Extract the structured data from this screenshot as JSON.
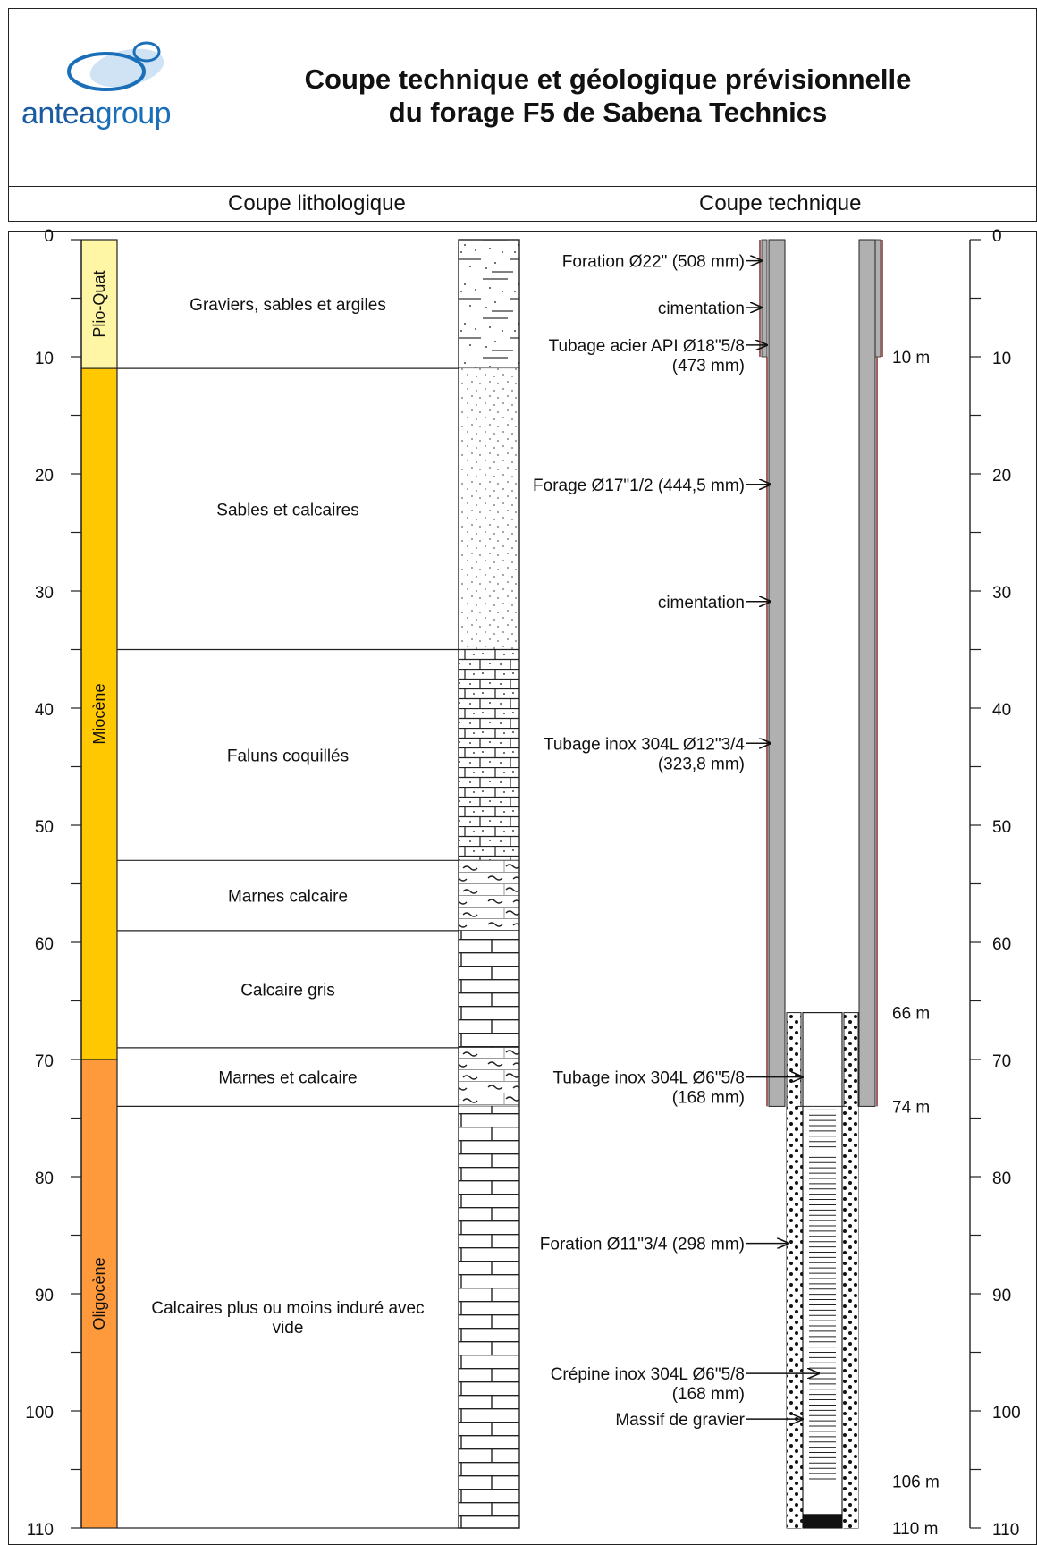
{
  "header": {
    "logo_text_a": "antea",
    "logo_text_b": "group",
    "title_line1": "Coupe technique et géologique prévisionnelle",
    "title_line2": "du forage F5 de Sabena Technics"
  },
  "sections": {
    "litho": "Coupe lithologique",
    "tech": "Coupe technique"
  },
  "depth_axis": {
    "min": 0,
    "max": 110,
    "major_ticks": [
      0,
      10,
      20,
      30,
      40,
      50,
      60,
      70,
      80,
      90,
      100,
      110
    ]
  },
  "stratigraphy": [
    {
      "label": "Plio-Quat",
      "top": 0,
      "bottom": 11,
      "color": "#FEF5A5"
    },
    {
      "label": "Miocène",
      "top": 11,
      "bottom": 70,
      "color": "#FFC800"
    },
    {
      "label": "Oligocène",
      "top": 70,
      "bottom": 110,
      "color": "#FF9A3C"
    }
  ],
  "lithology": [
    {
      "label": "Graviers, sables et argiles",
      "top": 0,
      "bottom": 11,
      "pattern": "gravel-sand-clay"
    },
    {
      "label": "Sables et calcaires",
      "top": 11,
      "bottom": 35,
      "pattern": "sand"
    },
    {
      "label": "Faluns coquillés",
      "top": 35,
      "bottom": 53,
      "pattern": "shelly-limestone"
    },
    {
      "label": "Marnes calcaire",
      "top": 53,
      "bottom": 59,
      "pattern": "marl"
    },
    {
      "label": "Calcaire gris",
      "top": 59,
      "bottom": 69,
      "pattern": "limestone"
    },
    {
      "label": "Marnes et calcaire",
      "top": 69,
      "bottom": 74,
      "pattern": "marl"
    },
    {
      "label": "Calcaires plus ou moins induré avec vide",
      "top": 74,
      "bottom": 110,
      "pattern": "limestone"
    }
  ],
  "annotations": [
    {
      "lines": [
        "Foration Ø22\" (508 mm)"
      ],
      "depth": 1.8
    },
    {
      "lines": [
        "cimentation"
      ],
      "depth": 5.8
    },
    {
      "lines": [
        "Tubage acier API Ø18\"5/8",
        "(473 mm)"
      ],
      "depth": 9
    },
    {
      "lines": [
        "Forage Ø17\"1/2 (444,5 mm)"
      ],
      "depth": 20.9
    },
    {
      "lines": [
        "cimentation"
      ],
      "depth": 30.9
    },
    {
      "lines": [
        "Tubage inox 304L Ø12\"3/4",
        "(323,8 mm)"
      ],
      "depth": 43
    },
    {
      "lines": [
        "Tubage inox 304L Ø6\"5/8",
        "(168 mm)"
      ],
      "depth": 71.5
    },
    {
      "lines": [
        "Foration Ø11\"3/4 (298 mm)"
      ],
      "depth": 85.7
    },
    {
      "lines": [
        "Crépine inox 304L Ø6\"5/8",
        "(168 mm)"
      ],
      "depth": 96.8
    },
    {
      "lines": [
        "Massif de gravier"
      ],
      "depth": 100.7
    }
  ],
  "depth_markers": [
    {
      "label": "10 m",
      "depth": 10
    },
    {
      "label": "66 m",
      "depth": 66
    },
    {
      "label": "74 m",
      "depth": 74
    },
    {
      "label": "106 m",
      "depth": 106
    },
    {
      "label": "110 m",
      "depth": 110
    }
  ],
  "well": {
    "outer_casing_bottom": 10,
    "inner_casing_bottom": 74,
    "gravel_pack_top": 66,
    "gravel_pack_bottom": 110,
    "screen_top": 74,
    "screen_bottom": 106,
    "colors": {
      "casing": "#B0B0B0",
      "cement": "#8B3A3A",
      "line": "#222222"
    }
  }
}
